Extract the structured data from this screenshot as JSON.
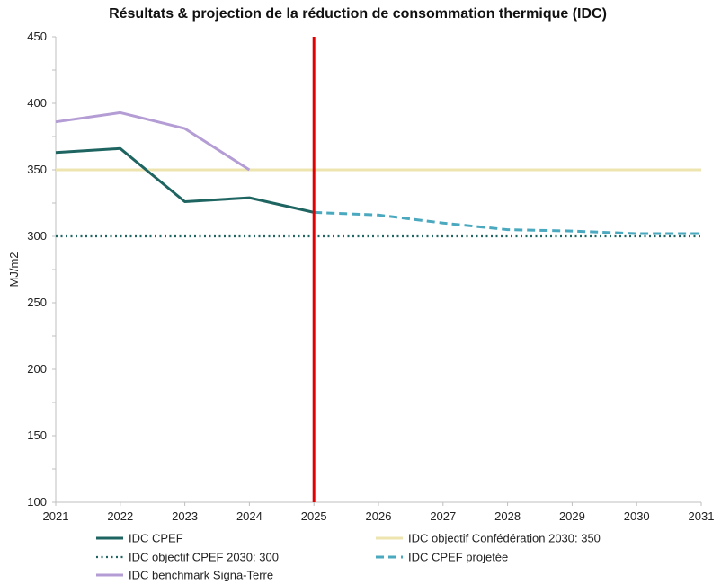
{
  "chart_data": {
    "type": "line",
    "title": "Résultats & projection de la réduction de consommation thermique (IDC)",
    "xlabel": "",
    "ylabel": "MJ/m2",
    "categories": [
      "2021",
      "2022",
      "2023",
      "2024",
      "2025",
      "2026",
      "2027",
      "2028",
      "2029",
      "2030",
      "2031"
    ],
    "ylim": [
      100,
      450
    ],
    "yticks": [
      "100",
      "150",
      "200",
      "250",
      "300",
      "350",
      "400",
      "450"
    ],
    "grid": false,
    "legend_position": "bottom",
    "series": [
      {
        "name": "IDC CPEF",
        "style": "solid",
        "color": "#1e6461",
        "values": [
          363,
          366,
          326,
          329,
          318,
          null,
          null,
          null,
          null,
          null,
          null
        ]
      },
      {
        "name": "IDC objectif CPEF 2030: 300",
        "style": "dotted",
        "color": "#1e6461",
        "values": [
          300,
          300,
          300,
          300,
          300,
          300,
          300,
          300,
          300,
          300,
          300
        ]
      },
      {
        "name": "IDC benchmark Signa-Terre",
        "style": "solid",
        "color": "#b49dd4",
        "values": [
          386,
          393,
          381,
          350,
          null,
          null,
          null,
          null,
          null,
          null,
          null
        ]
      },
      {
        "name": "IDC objectif Confédération 2030: 350",
        "style": "solid",
        "color": "#ede4b0",
        "values": [
          350,
          350,
          350,
          350,
          350,
          350,
          350,
          350,
          350,
          350,
          350
        ]
      },
      {
        "name": "IDC CPEF projetée",
        "style": "dashed",
        "color": "#4ba9bf",
        "values": [
          null,
          null,
          null,
          null,
          318,
          316,
          310,
          305,
          304,
          302,
          302
        ]
      }
    ],
    "annotations": [
      {
        "type": "vertical-line",
        "x": "2025",
        "color": "#e30000"
      }
    ]
  }
}
